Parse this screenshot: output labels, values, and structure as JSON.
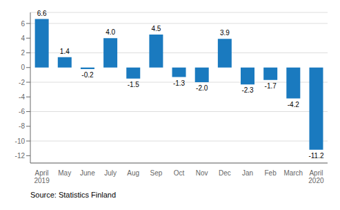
{
  "chart_data": {
    "type": "bar",
    "categories": [
      "April\n2019",
      "May",
      "June",
      "July",
      "Aug",
      "Sep",
      "Oct",
      "Nov",
      "Dec",
      "Jan",
      "Feb",
      "March",
      "April\n2020"
    ],
    "values": [
      6.6,
      1.4,
      -0.2,
      4.0,
      -1.5,
      4.5,
      -1.3,
      -2.0,
      3.9,
      -2.3,
      -1.7,
      -4.2,
      -11.2
    ],
    "value_labels": [
      "6.6",
      "1.4",
      "-0.2",
      "4.0",
      "-1.5",
      "4.5",
      "-1.3",
      "-2.0",
      "3.9",
      "-2.3",
      "-1.7",
      "-4.2",
      "-11.2"
    ],
    "color": "#1a7abf",
    "ylim": [
      -13,
      7.5
    ],
    "yticks": [
      -12,
      -10,
      -8,
      -6,
      -4,
      -2,
      0,
      2,
      4,
      6
    ],
    "grid": true,
    "data_labels": true,
    "annotations": [
      "Source: Statistics Finland"
    ]
  }
}
